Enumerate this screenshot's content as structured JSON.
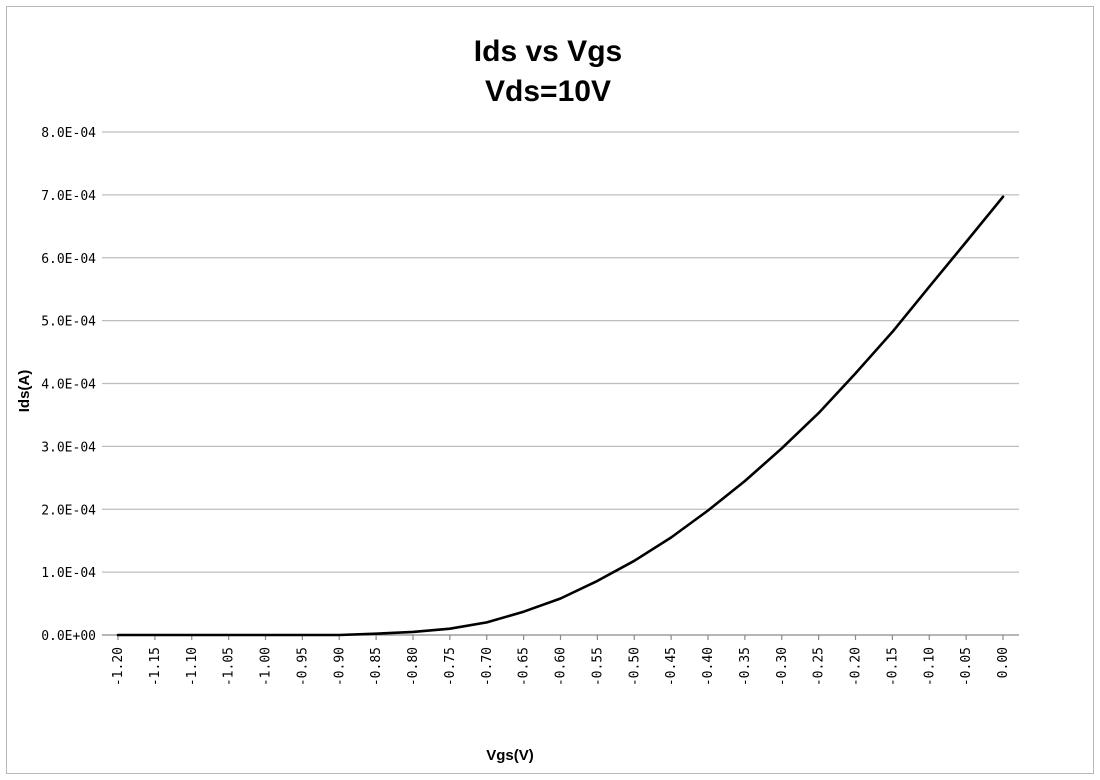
{
  "chart_data": {
    "type": "line",
    "title": [
      "Ids vs Vgs",
      "Vds=10V"
    ],
    "xlabel": "Vgs(V)",
    "ylabel": "Ids(A)",
    "x_tick_labels": [
      "-1.20",
      "-1.15",
      "-1.10",
      "-1.05",
      "-1.00",
      "-0.95",
      "-0.90",
      "-0.85",
      "-0.80",
      "-0.75",
      "-0.70",
      "-0.65",
      "-0.60",
      "-0.55",
      "-0.50",
      "-0.45",
      "-0.40",
      "-0.35",
      "-0.30",
      "-0.25",
      "-0.20",
      "-0.15",
      "-0.10",
      "-0.05",
      "0.00"
    ],
    "y_tick_labels": [
      "0.0E+00",
      "1.0E-04",
      "2.0E-04",
      "3.0E-04",
      "4.0E-04",
      "5.0E-04",
      "6.0E-04",
      "7.0E-04",
      "8.0E-04"
    ],
    "ylim": [
      0,
      0.0008
    ],
    "grid": true,
    "legend": "none",
    "series": [
      {
        "x": [
          -1.2,
          -1.15,
          -1.1,
          -1.05,
          -1.0,
          -0.95,
          -0.9,
          -0.85,
          -0.8,
          -0.75,
          -0.7,
          -0.65,
          -0.6,
          -0.55,
          -0.5,
          -0.45,
          -0.4,
          -0.35,
          -0.3,
          -0.25,
          -0.2,
          -0.15,
          -0.1,
          -0.05,
          0.0
        ],
        "y": [
          0,
          0,
          0,
          0,
          0,
          0,
          0,
          2e-06,
          5e-06,
          1e-05,
          2e-05,
          3.7e-05,
          5.8e-05,
          8.6e-05,
          0.000118,
          0.000155,
          0.000198,
          0.000245,
          0.000297,
          0.000353,
          0.000416,
          0.000482,
          0.000554,
          0.000625,
          0.000697
        ],
        "color": "#000000"
      }
    ]
  }
}
